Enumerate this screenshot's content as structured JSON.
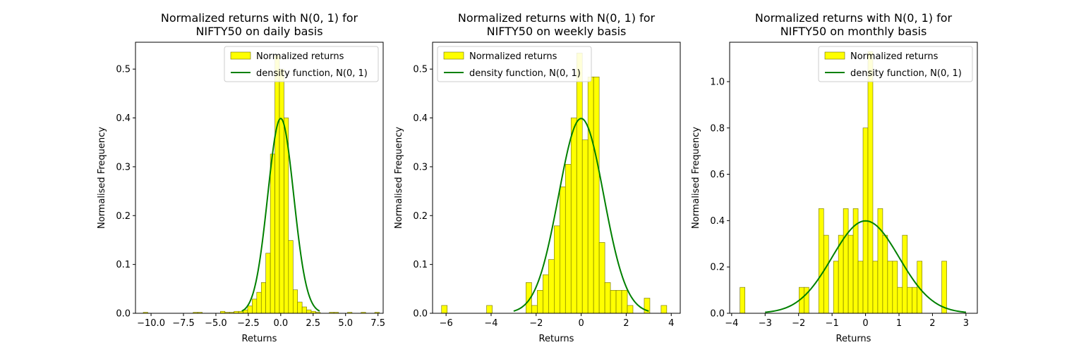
{
  "chart_data": [
    {
      "type": "bar",
      "title": "Normalized returns with N(0, 1) for\nNIFTY50 on daily basis",
      "xlabel": "Returns",
      "ylabel": "Normalised Frequency",
      "xlim": [
        -11.2,
        7.9
      ],
      "ylim": [
        0,
        0.555
      ],
      "xticks": [
        -10.0,
        -7.5,
        -5.0,
        -2.5,
        0.0,
        2.5,
        5.0,
        7.5
      ],
      "xtick_labels": [
        "−10.0",
        "−7.5",
        "−5.0",
        "−2.5",
        "0.0",
        "2.5",
        "5.0",
        "7.5"
      ],
      "yticks": [
        0.0,
        0.1,
        0.2,
        0.3,
        0.4,
        0.5
      ],
      "ytick_labels": [
        "0.0",
        "0.1",
        "0.2",
        "0.3",
        "0.4",
        "0.5"
      ],
      "legend_loc": "top-right",
      "bins": {
        "start": -10.6,
        "width": 0.35,
        "values": [
          0.002,
          0,
          0,
          0,
          0,
          0,
          0,
          0,
          0,
          0,
          0,
          0.002,
          0.002,
          0,
          0,
          0,
          0,
          0.004,
          0.002,
          0.002,
          0.004,
          0.004,
          0.007,
          0.015,
          0.029,
          0.043,
          0.063,
          0.123,
          0.326,
          0.528,
          0.5,
          0.4,
          0.149,
          0.048,
          0.023,
          0.013,
          0.007,
          0.004,
          0.002,
          0,
          0,
          0.002,
          0.002,
          0,
          0,
          0.002,
          0,
          0,
          0.002,
          0,
          0,
          0.002
        ]
      },
      "series": [
        {
          "name": "Normalized returns",
          "kind": "histogram",
          "color": "#ffff00"
        },
        {
          "name": "density function, N(0, 1)",
          "kind": "line",
          "color": "#008000",
          "range": [
            -3,
            3
          ],
          "mean": 0,
          "sd": 1
        }
      ]
    },
    {
      "type": "bar",
      "title": "Normalized returns with N(0, 1) for\nNIFTY50 on weekly basis",
      "xlabel": "Returns",
      "ylabel": "Normalised Frequency",
      "xlim": [
        -6.6,
        4.4
      ],
      "ylim": [
        0,
        0.555
      ],
      "xticks": [
        -6,
        -4,
        -2,
        0,
        2,
        4
      ],
      "xtick_labels": [
        "−6",
        "−4",
        "−2",
        "0",
        "2",
        "4"
      ],
      "yticks": [
        0.0,
        0.1,
        0.2,
        0.3,
        0.4,
        0.5
      ],
      "ytick_labels": [
        "0.0",
        "0.1",
        "0.2",
        "0.3",
        "0.4",
        "0.5"
      ],
      "legend_loc": "top-left",
      "bins": {
        "start": -6.2,
        "width": 0.25,
        "values": [
          0.016,
          0,
          0,
          0,
          0,
          0,
          0,
          0,
          0.016,
          0,
          0,
          0,
          0,
          0,
          0,
          0.063,
          0.016,
          0.047,
          0.079,
          0.11,
          0.179,
          0.259,
          0.305,
          0.4,
          0.533,
          0.355,
          0.484,
          0.484,
          0.145,
          0.063,
          0.047,
          0.047,
          0.047,
          0.016,
          0,
          0,
          0.031,
          0,
          0,
          0.016
        ]
      },
      "series": [
        {
          "name": "Normalized returns",
          "kind": "histogram",
          "color": "#ffff00"
        },
        {
          "name": "density function, N(0, 1)",
          "kind": "line",
          "color": "#008000",
          "range": [
            -3,
            3
          ],
          "mean": 0,
          "sd": 1
        }
      ]
    },
    {
      "type": "bar",
      "title": "Normalized returns with N(0, 1) for\nNIFTY50 on monthly basis",
      "xlabel": "Returns",
      "ylabel": "Normalised Frequency",
      "xlim": [
        -4.06,
        3.34
      ],
      "ylim": [
        0,
        1.17
      ],
      "xticks": [
        -4,
        -3,
        -2,
        -1,
        0,
        1,
        2,
        3
      ],
      "xtick_labels": [
        "−4",
        "−3",
        "−2",
        "−1",
        "0",
        "1",
        "2",
        "3"
      ],
      "yticks": [
        0.0,
        0.2,
        0.4,
        0.6,
        0.8,
        1.0
      ],
      "ytick_labels": [
        "0.0",
        "0.2",
        "0.4",
        "0.6",
        "0.8",
        "1.0"
      ],
      "legend_loc": "top-right",
      "bins": {
        "start": -3.75,
        "width": 0.147,
        "values": [
          0.112,
          0,
          0,
          0,
          0,
          0,
          0,
          0,
          0,
          0,
          0,
          0,
          0.112,
          0.112,
          0,
          0,
          0.452,
          0.337,
          0,
          0.225,
          0.337,
          0.452,
          0.337,
          0.452,
          0.225,
          0.8,
          1.13,
          0.225,
          0.452,
          0.337,
          0.225,
          0.225,
          0.112,
          0.337,
          0.112,
          0.112,
          0.225,
          0,
          0,
          0,
          0,
          0.225
        ]
      },
      "series": [
        {
          "name": "Normalized returns",
          "kind": "histogram",
          "color": "#ffff00"
        },
        {
          "name": "density function, N(0, 1)",
          "kind": "line",
          "color": "#008000",
          "range": [
            -3,
            3
          ],
          "mean": 0,
          "sd": 1
        }
      ]
    }
  ]
}
